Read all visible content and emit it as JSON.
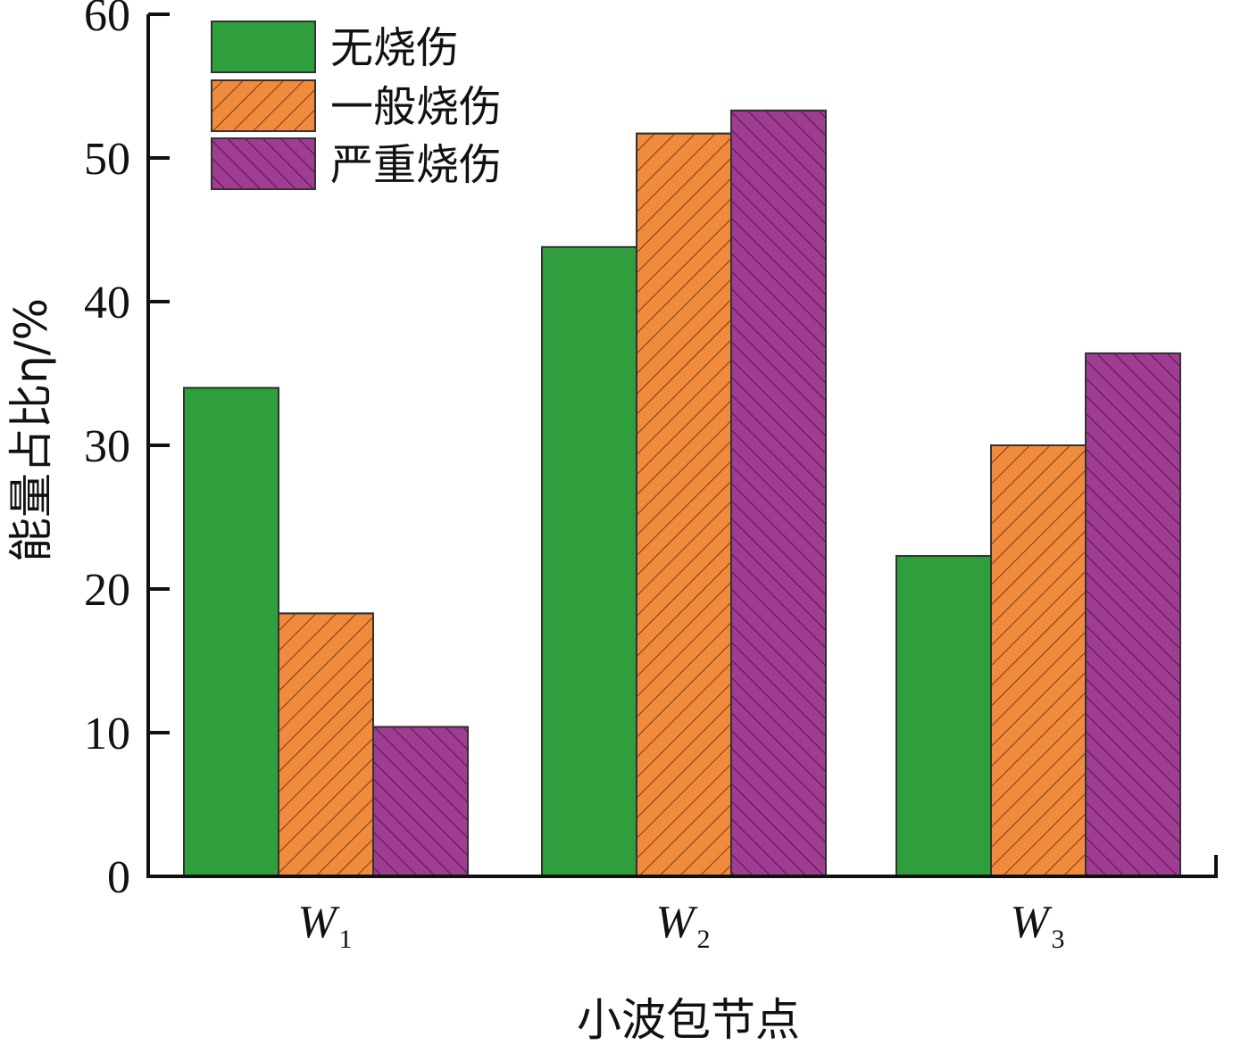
{
  "chart_data": {
    "type": "bar",
    "categories": [
      "W",
      "W",
      "W"
    ],
    "category_subscripts": [
      "1",
      "2",
      "3"
    ],
    "series": [
      {
        "name": "无烧伤",
        "values": [
          34.0,
          43.8,
          22.3
        ],
        "color": "#2f9e3c",
        "hatch": "none"
      },
      {
        "name": "一般烧伤",
        "values": [
          18.3,
          51.7,
          30.0
        ],
        "color": "#f08a3c",
        "hatch": "forward"
      },
      {
        "name": "严重烧伤",
        "values": [
          10.4,
          53.3,
          36.4
        ],
        "color": "#a03c92",
        "hatch": "backward"
      }
    ],
    "xlabel": "小波包节点",
    "ylabel": "能量占比η/%",
    "ylim": [
      0,
      60
    ],
    "yticks": [
      0,
      10,
      20,
      30,
      40,
      50,
      60
    ],
    "grid": false,
    "legend_position": "top-left"
  }
}
